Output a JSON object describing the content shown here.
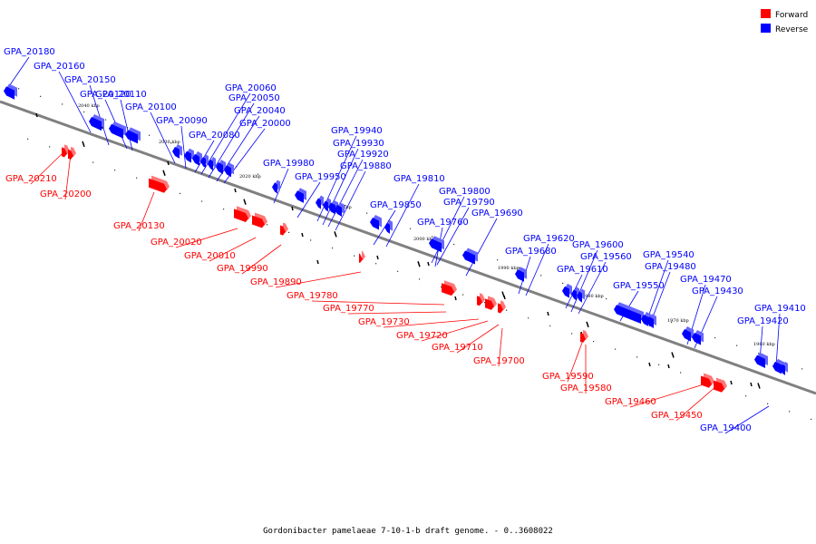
{
  "caption": "Gordonibacter pamelaeae 7-10-1-b draft genome. - 0..3608022",
  "legend": [
    {
      "label": "Forward",
      "color": "#ff0000"
    },
    {
      "label": "Reverse",
      "color": "#0000ff"
    }
  ],
  "colors": {
    "forward": "#ff0000",
    "reverse": "#0000ff",
    "axis": "#808080"
  },
  "ticks": [
    {
      "label": "2040 kbp"
    },
    {
      "label": "2030 kbp"
    },
    {
      "label": "2020 kbp"
    },
    {
      "label": "2010 kbp"
    },
    {
      "label": "2000 kbp"
    },
    {
      "label": "1990 kbp"
    },
    {
      "label": "1980 kbp"
    },
    {
      "label": "1970 kbp"
    },
    {
      "label": "1960 kbp"
    }
  ],
  "reverse_genes": [
    "GPA_20180",
    "GPA_20160",
    "GPA_20150",
    "GPA_20120",
    "GPA_20110",
    "GPA_20100",
    "GPA_20090",
    "GPA_20080",
    "GPA_20060",
    "GPA_20050",
    "GPA_20040",
    "GPA_20000",
    "GPA_19980",
    "GPA_19950",
    "GPA_19940",
    "GPA_19930",
    "GPA_19920",
    "GPA_19880",
    "GPA_19850",
    "GPA_19810",
    "GPA_19800",
    "GPA_19790",
    "GPA_19760",
    "GPA_19690",
    "GPA_19680",
    "GPA_19620",
    "GPA_19610",
    "GPA_19600",
    "GPA_19560",
    "GPA_19550",
    "GPA_19540",
    "GPA_19480",
    "GPA_19470",
    "GPA_19430",
    "GPA_19420",
    "GPA_19410",
    "GPA_19400"
  ],
  "forward_genes": [
    "GPA_20210",
    "GPA_20200",
    "GPA_20130",
    "GPA_20020",
    "GPA_20010",
    "GPA_19990",
    "GPA_19890",
    "GPA_19780",
    "GPA_19770",
    "GPA_19730",
    "GPA_19720",
    "GPA_19710",
    "GPA_19700",
    "GPA_19590",
    "GPA_19580",
    "GPA_19460",
    "GPA_19450"
  ]
}
